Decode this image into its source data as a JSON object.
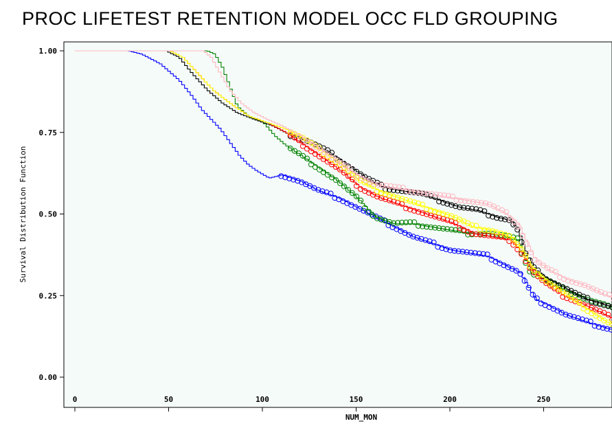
{
  "title": "PROC LIFETEST RETENTION MODEL OCC FLD GROUPING",
  "chart_data": {
    "type": "line",
    "title": "PROC LIFETEST RETENTION MODEL OCC FLD GROUPING",
    "xlabel": "NUM_MON",
    "ylabel": "Survival Distribution Function",
    "xlim": [
      -5,
      290
    ],
    "ylim": [
      -0.03,
      1.01
    ],
    "xticks": [
      0,
      50,
      100,
      150,
      200,
      250
    ],
    "yticks": [
      0.0,
      0.25,
      0.5,
      0.75,
      1.0
    ],
    "xtick_labels": [
      "0",
      "50",
      "100",
      "150",
      "200",
      "250"
    ],
    "ytick_labels": [
      "0.00",
      "0.25",
      "0.50",
      "0.75",
      "1.00"
    ],
    "background": "#f5fbf8",
    "grid": false,
    "series": [
      {
        "color": "#0000ff",
        "censor_from": 110,
        "points": [
          [
            0,
            1.0
          ],
          [
            28,
            1.0
          ],
          [
            35,
            0.99
          ],
          [
            45,
            0.96
          ],
          [
            55,
            0.91
          ],
          [
            62,
            0.86
          ],
          [
            67,
            0.82
          ],
          [
            72,
            0.79
          ],
          [
            77,
            0.76
          ],
          [
            82,
            0.72
          ],
          [
            87,
            0.68
          ],
          [
            92,
            0.65
          ],
          [
            97,
            0.63
          ],
          [
            103,
            0.61
          ],
          [
            110,
            0.62
          ],
          [
            120,
            0.6
          ],
          [
            130,
            0.57
          ],
          [
            140,
            0.55
          ],
          [
            150,
            0.52
          ],
          [
            160,
            0.49
          ],
          [
            170,
            0.46
          ],
          [
            180,
            0.43
          ],
          [
            190,
            0.41
          ],
          [
            200,
            0.39
          ],
          [
            210,
            0.38
          ],
          [
            220,
            0.37
          ],
          [
            230,
            0.34
          ],
          [
            237,
            0.32
          ],
          [
            241,
            0.28
          ],
          [
            245,
            0.24
          ],
          [
            252,
            0.22
          ],
          [
            262,
            0.19
          ],
          [
            272,
            0.17
          ],
          [
            283,
            0.15
          ],
          [
            290,
            0.14
          ]
        ]
      },
      {
        "color": "#008000",
        "censor_from": 115,
        "points": [
          [
            0,
            1.0
          ],
          [
            70,
            1.0
          ],
          [
            74,
            0.99
          ],
          [
            78,
            0.95
          ],
          [
            82,
            0.89
          ],
          [
            86,
            0.83
          ],
          [
            92,
            0.8
          ],
          [
            100,
            0.78
          ],
          [
            106,
            0.74
          ],
          [
            112,
            0.71
          ],
          [
            120,
            0.68
          ],
          [
            130,
            0.64
          ],
          [
            140,
            0.6
          ],
          [
            150,
            0.55
          ],
          [
            160,
            0.49
          ],
          [
            170,
            0.47
          ],
          [
            180,
            0.47
          ],
          [
            190,
            0.46
          ],
          [
            200,
            0.45
          ],
          [
            210,
            0.44
          ],
          [
            220,
            0.44
          ],
          [
            230,
            0.43
          ],
          [
            236,
            0.42
          ],
          [
            239,
            0.37
          ],
          [
            243,
            0.32
          ],
          [
            250,
            0.3
          ],
          [
            260,
            0.27
          ],
          [
            272,
            0.24
          ],
          [
            283,
            0.22
          ],
          [
            290,
            0.2
          ]
        ]
      },
      {
        "color": "#000000",
        "censor_from": 115,
        "points": [
          [
            0,
            1.0
          ],
          [
            48,
            1.0
          ],
          [
            55,
            0.98
          ],
          [
            62,
            0.93
          ],
          [
            70,
            0.88
          ],
          [
            78,
            0.84
          ],
          [
            86,
            0.81
          ],
          [
            95,
            0.79
          ],
          [
            105,
            0.77
          ],
          [
            115,
            0.74
          ],
          [
            125,
            0.72
          ],
          [
            135,
            0.69
          ],
          [
            145,
            0.65
          ],
          [
            155,
            0.61
          ],
          [
            165,
            0.58
          ],
          [
            175,
            0.57
          ],
          [
            185,
            0.56
          ],
          [
            195,
            0.54
          ],
          [
            205,
            0.52
          ],
          [
            215,
            0.51
          ],
          [
            225,
            0.49
          ],
          [
            232,
            0.48
          ],
          [
            236,
            0.45
          ],
          [
            240,
            0.38
          ],
          [
            245,
            0.33
          ],
          [
            252,
            0.3
          ],
          [
            262,
            0.27
          ],
          [
            272,
            0.24
          ],
          [
            283,
            0.22
          ],
          [
            290,
            0.21
          ]
        ]
      },
      {
        "color": "#ff0000",
        "censor_from": 115,
        "points": [
          [
            0,
            1.0
          ],
          [
            50,
            1.0
          ],
          [
            57,
            0.98
          ],
          [
            65,
            0.93
          ],
          [
            73,
            0.88
          ],
          [
            82,
            0.84
          ],
          [
            92,
            0.8
          ],
          [
            102,
            0.78
          ],
          [
            112,
            0.75
          ],
          [
            122,
            0.71
          ],
          [
            132,
            0.67
          ],
          [
            142,
            0.63
          ],
          [
            152,
            0.58
          ],
          [
            162,
            0.55
          ],
          [
            172,
            0.53
          ],
          [
            182,
            0.51
          ],
          [
            192,
            0.49
          ],
          [
            202,
            0.47
          ],
          [
            212,
            0.44
          ],
          [
            222,
            0.43
          ],
          [
            232,
            0.42
          ],
          [
            238,
            0.38
          ],
          [
            243,
            0.33
          ],
          [
            250,
            0.29
          ],
          [
            260,
            0.25
          ],
          [
            272,
            0.22
          ],
          [
            283,
            0.19
          ],
          [
            290,
            0.17
          ]
        ]
      },
      {
        "color": "#ffff00",
        "censor_from": 115,
        "points": [
          [
            0,
            1.0
          ],
          [
            50,
            1.0
          ],
          [
            57,
            0.98
          ],
          [
            65,
            0.93
          ],
          [
            73,
            0.88
          ],
          [
            82,
            0.84
          ],
          [
            92,
            0.8
          ],
          [
            102,
            0.78
          ],
          [
            112,
            0.76
          ],
          [
            122,
            0.73
          ],
          [
            132,
            0.69
          ],
          [
            142,
            0.65
          ],
          [
            152,
            0.6
          ],
          [
            162,
            0.57
          ],
          [
            172,
            0.55
          ],
          [
            182,
            0.53
          ],
          [
            192,
            0.51
          ],
          [
            202,
            0.49
          ],
          [
            212,
            0.46
          ],
          [
            222,
            0.45
          ],
          [
            232,
            0.43
          ],
          [
            238,
            0.39
          ],
          [
            243,
            0.34
          ],
          [
            250,
            0.3
          ],
          [
            260,
            0.26
          ],
          [
            272,
            0.21
          ],
          [
            283,
            0.17
          ],
          [
            290,
            0.15
          ]
        ]
      },
      {
        "color": "#ffb6c1",
        "censor_from": 120,
        "points": [
          [
            0,
            1.0
          ],
          [
            68,
            1.0
          ],
          [
            72,
            0.98
          ],
          [
            77,
            0.93
          ],
          [
            82,
            0.88
          ],
          [
            88,
            0.84
          ],
          [
            95,
            0.81
          ],
          [
            102,
            0.79
          ],
          [
            110,
            0.77
          ],
          [
            120,
            0.74
          ],
          [
            130,
            0.7
          ],
          [
            140,
            0.66
          ],
          [
            150,
            0.62
          ],
          [
            160,
            0.59
          ],
          [
            170,
            0.58
          ],
          [
            180,
            0.57
          ],
          [
            190,
            0.56
          ],
          [
            200,
            0.55
          ],
          [
            210,
            0.54
          ],
          [
            220,
            0.53
          ],
          [
            230,
            0.5
          ],
          [
            236,
            0.47
          ],
          [
            240,
            0.42
          ],
          [
            245,
            0.36
          ],
          [
            252,
            0.33
          ],
          [
            262,
            0.3
          ],
          [
            272,
            0.28
          ],
          [
            283,
            0.25
          ],
          [
            290,
            0.24
          ]
        ]
      }
    ]
  }
}
